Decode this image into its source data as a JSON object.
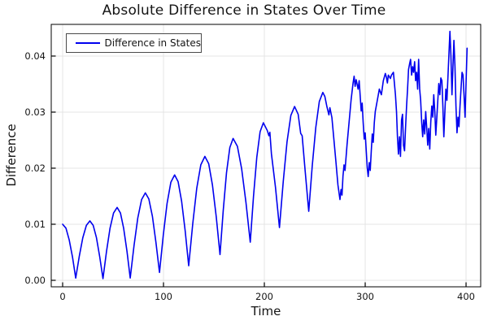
{
  "chart": {
    "title": "Absolute Difference in States Over Time",
    "xlabel": "Time",
    "ylabel": "Difference",
    "legend": {
      "entries": [
        {
          "label": "Difference in States",
          "color": "#0000ee"
        }
      ]
    }
  },
  "colors": {
    "line": "#0000ee",
    "axis": "#000000",
    "grid": "#e4e4e4",
    "text": "#151515",
    "background": "#ffffff",
    "legend_border": "#4a4a4a"
  },
  "chart_data": {
    "type": "line",
    "title": "Absolute Difference in States Over Time",
    "xlabel": "Time",
    "ylabel": "Difference",
    "legend_position": "top-left",
    "grid": true,
    "xlim": [
      -11.3,
      414.5
    ],
    "ylim": [
      -0.00116,
      0.04565
    ],
    "xticks": [
      0,
      100,
      200,
      300,
      400
    ],
    "xtick_labels": [
      "0",
      "100",
      "200",
      "300",
      "400"
    ],
    "yticks": [
      0,
      0.01,
      0.02,
      0.03,
      0.04
    ],
    "ytick_labels": [
      "0.00",
      "0.01",
      "0.02",
      "0.03",
      "0.04"
    ],
    "series": [
      {
        "name": "Difference in States",
        "color": "#0000ee",
        "points": [
          [
            0,
            0.01
          ],
          [
            3.3,
            0.0093
          ],
          [
            6.5,
            0.0072
          ],
          [
            9.8,
            0.0041
          ],
          [
            13,
            0.0004
          ],
          [
            16.5,
            0.0043
          ],
          [
            20,
            0.0076
          ],
          [
            23.5,
            0.0098
          ],
          [
            27,
            0.0106
          ],
          [
            30.3,
            0.0098
          ],
          [
            33.5,
            0.0076
          ],
          [
            36.8,
            0.0042
          ],
          [
            40,
            0.0003
          ],
          [
            43.5,
            0.0052
          ],
          [
            47,
            0.0093
          ],
          [
            50.5,
            0.012
          ],
          [
            54,
            0.013
          ],
          [
            57.3,
            0.012
          ],
          [
            60.5,
            0.0093
          ],
          [
            63.8,
            0.0052
          ],
          [
            67,
            0.0004
          ],
          [
            70.8,
            0.0062
          ],
          [
            74.5,
            0.0111
          ],
          [
            78.3,
            0.0144
          ],
          [
            82,
            0.0156
          ],
          [
            85.5,
            0.0145
          ],
          [
            89,
            0.0114
          ],
          [
            92.5,
            0.0068
          ],
          [
            96,
            0.0014
          ],
          [
            99.8,
            0.0081
          ],
          [
            103.5,
            0.0137
          ],
          [
            107.3,
            0.0175
          ],
          [
            111,
            0.0188
          ],
          [
            114.5,
            0.0176
          ],
          [
            118,
            0.0141
          ],
          [
            121.5,
            0.0088
          ],
          [
            125,
            0.0026
          ],
          [
            129,
            0.0101
          ],
          [
            133,
            0.0164
          ],
          [
            137,
            0.0206
          ],
          [
            141,
            0.0221
          ],
          [
            144.8,
            0.0208
          ],
          [
            148.5,
            0.017
          ],
          [
            152.3,
            0.0113
          ],
          [
            156,
            0.0046
          ],
          [
            159.3,
            0.0125
          ],
          [
            162.5,
            0.0192
          ],
          [
            165.8,
            0.0237
          ],
          [
            169,
            0.0253
          ],
          [
            173.3,
            0.0239
          ],
          [
            177.5,
            0.0199
          ],
          [
            181.8,
            0.0139
          ],
          [
            186,
            0.0068
          ],
          [
            189.3,
            0.015
          ],
          [
            192.5,
            0.0219
          ],
          [
            195.8,
            0.0265
          ],
          [
            199,
            0.0281
          ],
          [
            203,
            0.0267
          ],
          [
            204.5,
            0.0258
          ],
          [
            205.5,
            0.0264
          ],
          [
            207,
            0.0226
          ],
          [
            211,
            0.0166
          ],
          [
            215,
            0.0094
          ],
          [
            218.8,
            0.0177
          ],
          [
            222.5,
            0.0247
          ],
          [
            226.3,
            0.0294
          ],
          [
            230,
            0.031
          ],
          [
            233.5,
            0.0296
          ],
          [
            236,
            0.0262
          ],
          [
            237.5,
            0.0258
          ],
          [
            240.5,
            0.0195
          ],
          [
            244,
            0.0123
          ],
          [
            247.5,
            0.0204
          ],
          [
            251,
            0.0273
          ],
          [
            254.5,
            0.0319
          ],
          [
            258,
            0.0335
          ],
          [
            260,
            0.0328
          ],
          [
            262,
            0.031
          ],
          [
            264,
            0.0295
          ],
          [
            265,
            0.0308
          ],
          [
            267,
            0.029
          ],
          [
            269,
            0.025
          ],
          [
            271,
            0.021
          ],
          [
            273,
            0.017
          ],
          [
            275,
            0.0144
          ],
          [
            276,
            0.0162
          ],
          [
            277,
            0.0152
          ],
          [
            278,
            0.0186
          ],
          [
            279,
            0.0206
          ],
          [
            280,
            0.0196
          ],
          [
            282,
            0.0242
          ],
          [
            284,
            0.0282
          ],
          [
            286,
            0.0322
          ],
          [
            288,
            0.0352
          ],
          [
            289,
            0.0364
          ],
          [
            290,
            0.0346
          ],
          [
            291,
            0.0358
          ],
          [
            293,
            0.0341
          ],
          [
            294,
            0.0356
          ],
          [
            295,
            0.033
          ],
          [
            296,
            0.0302
          ],
          [
            297,
            0.0316
          ],
          [
            298,
            0.0282
          ],
          [
            299,
            0.0252
          ],
          [
            300,
            0.0263
          ],
          [
            301,
            0.0231
          ],
          [
            302,
            0.0201
          ],
          [
            303,
            0.0185
          ],
          [
            304,
            0.021
          ],
          [
            305,
            0.0196
          ],
          [
            306,
            0.0231
          ],
          [
            307,
            0.0261
          ],
          [
            308,
            0.0246
          ],
          [
            309,
            0.0281
          ],
          [
            310,
            0.0301
          ],
          [
            312,
            0.0321
          ],
          [
            314,
            0.0341
          ],
          [
            316,
            0.0331
          ],
          [
            318,
            0.0356
          ],
          [
            320,
            0.0369
          ],
          [
            321,
            0.0362
          ],
          [
            322,
            0.0352
          ],
          [
            323,
            0.0366
          ],
          [
            325,
            0.036
          ],
          [
            326,
            0.0366
          ],
          [
            328,
            0.0371
          ],
          [
            330,
            0.0331
          ],
          [
            331,
            0.0301
          ],
          [
            332,
            0.0255
          ],
          [
            333,
            0.0225
          ],
          [
            334,
            0.0256
          ],
          [
            335,
            0.0221
          ],
          [
            336,
            0.0286
          ],
          [
            337,
            0.0296
          ],
          [
            338,
            0.0241
          ],
          [
            339,
            0.0231
          ],
          [
            340,
            0.0271
          ],
          [
            341,
            0.0311
          ],
          [
            342,
            0.0341
          ],
          [
            343,
            0.0376
          ],
          [
            344,
            0.0386
          ],
          [
            345,
            0.0394
          ],
          [
            346,
            0.0366
          ],
          [
            347,
            0.0381
          ],
          [
            348,
            0.0371
          ],
          [
            349,
            0.039
          ],
          [
            350,
            0.0356
          ],
          [
            351,
            0.0371
          ],
          [
            352,
            0.0341
          ],
          [
            353,
            0.0394
          ],
          [
            354,
            0.0341
          ],
          [
            355,
            0.0321
          ],
          [
            356,
            0.0281
          ],
          [
            357,
            0.0256
          ],
          [
            358,
            0.0286
          ],
          [
            359,
            0.0261
          ],
          [
            360,
            0.0301
          ],
          [
            361,
            0.0271
          ],
          [
            362,
            0.0241
          ],
          [
            363,
            0.0271
          ],
          [
            364,
            0.0234
          ],
          [
            365,
            0.0281
          ],
          [
            366,
            0.0311
          ],
          [
            367,
            0.0291
          ],
          [
            368,
            0.0331
          ],
          [
            369,
            0.0301
          ],
          [
            370,
            0.0259
          ],
          [
            371,
            0.0291
          ],
          [
            372,
            0.0321
          ],
          [
            373,
            0.0351
          ],
          [
            374,
            0.0331
          ],
          [
            375,
            0.0361
          ],
          [
            376,
            0.0356
          ],
          [
            377,
            0.0311
          ],
          [
            378,
            0.0256
          ],
          [
            379,
            0.0301
          ],
          [
            380,
            0.0341
          ],
          [
            381,
            0.0321
          ],
          [
            382,
            0.0361
          ],
          [
            383,
            0.0401
          ],
          [
            384,
            0.0444
          ],
          [
            385,
            0.0401
          ],
          [
            386,
            0.0331
          ],
          [
            387,
            0.0381
          ],
          [
            388,
            0.0428
          ],
          [
            389,
            0.0381
          ],
          [
            390,
            0.0311
          ],
          [
            391,
            0.0263
          ],
          [
            392,
            0.0291
          ],
          [
            393,
            0.0274
          ],
          [
            394,
            0.0311
          ],
          [
            395,
            0.0341
          ],
          [
            396,
            0.0371
          ],
          [
            397,
            0.0366
          ],
          [
            398,
            0.0331
          ],
          [
            399,
            0.0291
          ],
          [
            400,
            0.0351
          ],
          [
            401,
            0.0414
          ]
        ]
      }
    ]
  }
}
